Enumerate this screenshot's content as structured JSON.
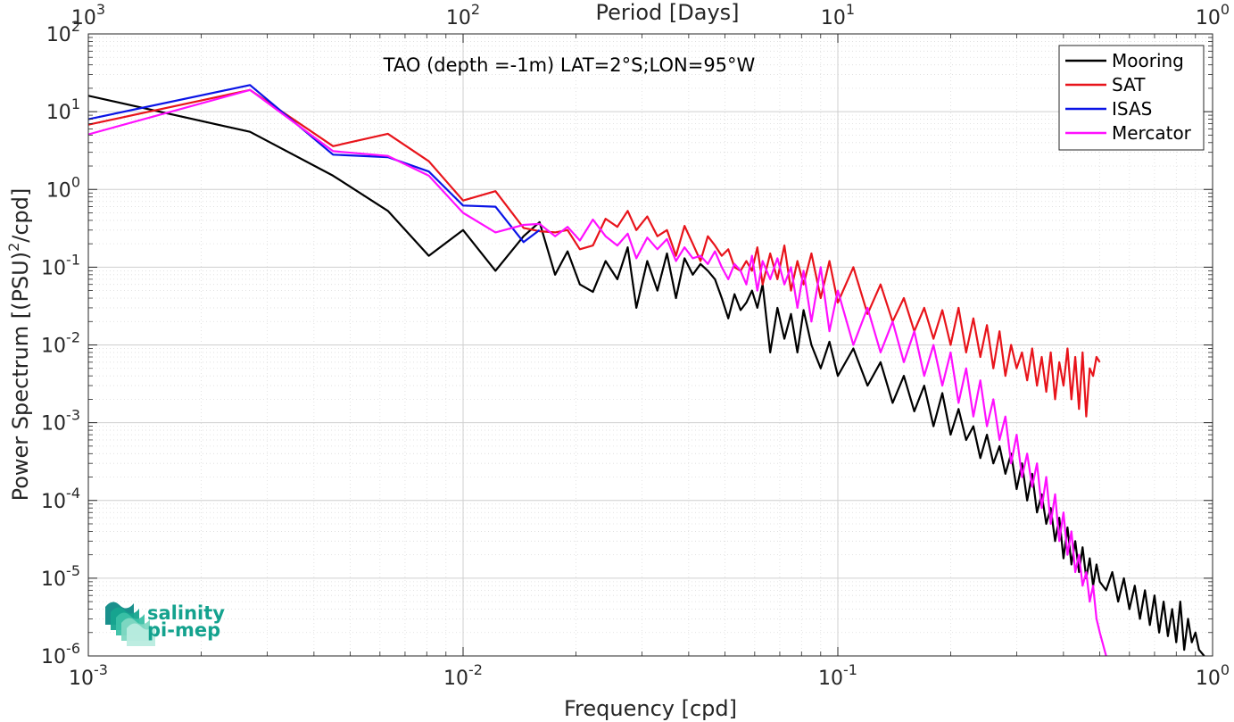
{
  "chart_data": {
    "type": "line",
    "title": "TAO (depth =-1m) LAT=2°S;LON=95°W",
    "xlabel": "Frequency [cpd]",
    "ylabel": "Power Spectrum [(PSU)²/cpd]",
    "ylabel_parts": {
      "main": "Power Spectrum [(PSU)",
      "sup": "2",
      "tail": "/cpd]"
    },
    "top_xlabel": "Period [Days]",
    "x_scale": "log",
    "y_scale": "log",
    "xlim": [
      0.001,
      1
    ],
    "ylim": [
      1e-06,
      100
    ],
    "grid": true,
    "minor_grid": true,
    "legend_position": "top-right",
    "x_ticks": [
      {
        "value": 0.001,
        "base": "10",
        "exp": "-3"
      },
      {
        "value": 0.01,
        "base": "10",
        "exp": "-2"
      },
      {
        "value": 0.1,
        "base": "10",
        "exp": "-1"
      },
      {
        "value": 1,
        "base": "10",
        "exp": "0"
      }
    ],
    "top_ticks": [
      {
        "value": 0.001,
        "base": "10",
        "exp": "3"
      },
      {
        "value": 0.01,
        "base": "10",
        "exp": "2"
      },
      {
        "value": 0.1,
        "base": "10",
        "exp": "1"
      },
      {
        "value": 1,
        "base": "10",
        "exp": "0"
      }
    ],
    "y_ticks": [
      {
        "value": 100,
        "base": "10",
        "exp": "2"
      },
      {
        "value": 10,
        "base": "10",
        "exp": "1"
      },
      {
        "value": 1,
        "base": "10",
        "exp": "0"
      },
      {
        "value": 0.1,
        "base": "10",
        "exp": "-1"
      },
      {
        "value": 0.01,
        "base": "10",
        "exp": "-2"
      },
      {
        "value": 0.001,
        "base": "10",
        "exp": "-3"
      },
      {
        "value": 0.0001,
        "base": "10",
        "exp": "-4"
      },
      {
        "value": 1e-05,
        "base": "10",
        "exp": "-5"
      },
      {
        "value": 1e-06,
        "base": "10",
        "exp": "-6"
      }
    ],
    "series": [
      {
        "name": "Mooring",
        "color": "#000000",
        "x": [
          0.001,
          0.0027,
          0.0045,
          0.0063,
          0.0081,
          0.01,
          0.0122,
          0.0145,
          0.016,
          0.0176,
          0.019,
          0.0205,
          0.0222,
          0.024,
          0.0258,
          0.0275,
          0.029,
          0.031,
          0.033,
          0.035,
          0.037,
          0.039,
          0.041,
          0.043,
          0.045,
          0.047,
          0.049,
          0.051,
          0.053,
          0.055,
          0.057,
          0.059,
          0.061,
          0.063,
          0.066,
          0.069,
          0.072,
          0.075,
          0.078,
          0.081,
          0.085,
          0.09,
          0.095,
          0.1,
          0.11,
          0.12,
          0.13,
          0.14,
          0.15,
          0.16,
          0.17,
          0.18,
          0.19,
          0.2,
          0.21,
          0.22,
          0.23,
          0.24,
          0.25,
          0.26,
          0.27,
          0.28,
          0.29,
          0.3,
          0.31,
          0.32,
          0.33,
          0.34,
          0.35,
          0.36,
          0.37,
          0.38,
          0.39,
          0.4,
          0.41,
          0.42,
          0.43,
          0.44,
          0.45,
          0.46,
          0.47,
          0.48,
          0.49,
          0.5,
          0.52,
          0.54,
          0.56,
          0.58,
          0.6,
          0.62,
          0.64,
          0.66,
          0.68,
          0.7,
          0.72,
          0.74,
          0.76,
          0.78,
          0.8,
          0.82,
          0.84,
          0.86,
          0.88,
          0.9,
          0.92,
          0.95
        ],
        "y": [
          16,
          5.5,
          1.5,
          0.53,
          0.14,
          0.3,
          0.09,
          0.25,
          0.38,
          0.08,
          0.16,
          0.06,
          0.048,
          0.12,
          0.07,
          0.18,
          0.03,
          0.12,
          0.05,
          0.15,
          0.04,
          0.13,
          0.08,
          0.11,
          0.09,
          0.07,
          0.04,
          0.022,
          0.045,
          0.028,
          0.035,
          0.05,
          0.03,
          0.06,
          0.008,
          0.03,
          0.012,
          0.025,
          0.008,
          0.028,
          0.01,
          0.005,
          0.011,
          0.004,
          0.009,
          0.003,
          0.006,
          0.0018,
          0.004,
          0.0014,
          0.003,
          0.0009,
          0.0024,
          0.0007,
          0.0015,
          0.0006,
          0.0009,
          0.00035,
          0.0007,
          0.0003,
          0.0005,
          0.00022,
          0.0004,
          0.00014,
          0.0003,
          0.0001,
          0.00022,
          7e-05,
          0.00012,
          5e-05,
          8e-05,
          3e-05,
          6e-05,
          1.8e-05,
          4.5e-05,
          1.5e-05,
          3e-05,
          1.2e-05,
          2.5e-05,
          1e-05,
          1.8e-05,
          8e-06,
          1.5e-05,
          9e-06,
          7e-06,
          1.2e-05,
          5e-06,
          1e-05,
          4e-06,
          8e-06,
          3e-06,
          7e-06,
          2.5e-06,
          6e-06,
          2e-06,
          5e-06,
          1.8e-06,
          4e-06,
          1.5e-06,
          5e-06,
          1.2e-06,
          3e-06,
          1.5e-06,
          2e-06,
          1.2e-06,
          1e-06
        ]
      },
      {
        "name": "SAT",
        "color": "#e8141b",
        "x": [
          0.001,
          0.0027,
          0.0045,
          0.0063,
          0.0081,
          0.01,
          0.0122,
          0.0145,
          0.016,
          0.0176,
          0.019,
          0.0205,
          0.0222,
          0.024,
          0.0258,
          0.0275,
          0.029,
          0.031,
          0.033,
          0.035,
          0.037,
          0.039,
          0.041,
          0.043,
          0.045,
          0.047,
          0.049,
          0.051,
          0.053,
          0.055,
          0.057,
          0.059,
          0.061,
          0.063,
          0.066,
          0.069,
          0.072,
          0.075,
          0.078,
          0.081,
          0.085,
          0.09,
          0.095,
          0.1,
          0.11,
          0.12,
          0.13,
          0.14,
          0.15,
          0.16,
          0.17,
          0.18,
          0.19,
          0.2,
          0.21,
          0.22,
          0.23,
          0.24,
          0.25,
          0.26,
          0.27,
          0.28,
          0.29,
          0.3,
          0.31,
          0.32,
          0.33,
          0.34,
          0.35,
          0.36,
          0.37,
          0.38,
          0.39,
          0.4,
          0.41,
          0.42,
          0.43,
          0.44,
          0.45,
          0.46,
          0.47,
          0.48,
          0.49,
          0.5
        ],
        "y": [
          6.8,
          19,
          3.6,
          5.2,
          2.3,
          0.72,
          0.95,
          0.32,
          0.29,
          0.28,
          0.3,
          0.17,
          0.19,
          0.42,
          0.33,
          0.53,
          0.3,
          0.45,
          0.25,
          0.3,
          0.14,
          0.34,
          0.2,
          0.12,
          0.25,
          0.19,
          0.14,
          0.17,
          0.1,
          0.09,
          0.12,
          0.09,
          0.18,
          0.06,
          0.15,
          0.07,
          0.19,
          0.05,
          0.12,
          0.06,
          0.15,
          0.04,
          0.12,
          0.035,
          0.1,
          0.025,
          0.06,
          0.02,
          0.04,
          0.015,
          0.03,
          0.012,
          0.028,
          0.01,
          0.03,
          0.008,
          0.022,
          0.007,
          0.018,
          0.005,
          0.015,
          0.004,
          0.01,
          0.005,
          0.008,
          0.0035,
          0.009,
          0.003,
          0.007,
          0.0025,
          0.008,
          0.002,
          0.006,
          0.003,
          0.009,
          0.002,
          0.007,
          0.0015,
          0.008,
          0.0012,
          0.005,
          0.004,
          0.007,
          0.006
        ]
      },
      {
        "name": "ISAS",
        "color": "#0a14e6",
        "x": [
          0.001,
          0.0027,
          0.0045,
          0.0063,
          0.0081,
          0.01,
          0.0122,
          0.0145,
          0.016
        ],
        "y": [
          8,
          22,
          2.8,
          2.6,
          1.7,
          0.62,
          0.6,
          0.21,
          0.3
        ]
      },
      {
        "name": "Mercator",
        "color": "#ff10ff",
        "x": [
          0.001,
          0.0027,
          0.0045,
          0.0063,
          0.0081,
          0.01,
          0.0122,
          0.0145,
          0.016,
          0.0176,
          0.019,
          0.0205,
          0.0222,
          0.024,
          0.0258,
          0.0275,
          0.029,
          0.031,
          0.033,
          0.035,
          0.037,
          0.039,
          0.041,
          0.043,
          0.045,
          0.047,
          0.049,
          0.051,
          0.053,
          0.055,
          0.057,
          0.059,
          0.061,
          0.063,
          0.066,
          0.069,
          0.072,
          0.075,
          0.078,
          0.081,
          0.085,
          0.09,
          0.095,
          0.1,
          0.11,
          0.12,
          0.13,
          0.14,
          0.15,
          0.16,
          0.17,
          0.18,
          0.19,
          0.2,
          0.21,
          0.22,
          0.23,
          0.24,
          0.25,
          0.26,
          0.27,
          0.28,
          0.29,
          0.3,
          0.31,
          0.32,
          0.33,
          0.34,
          0.35,
          0.36,
          0.37,
          0.38,
          0.39,
          0.4,
          0.41,
          0.42,
          0.43,
          0.44,
          0.45,
          0.46,
          0.47,
          0.48,
          0.49,
          0.5,
          0.52
        ],
        "y": [
          5.1,
          19,
          3.1,
          2.7,
          1.5,
          0.5,
          0.28,
          0.35,
          0.36,
          0.25,
          0.33,
          0.22,
          0.41,
          0.25,
          0.19,
          0.27,
          0.13,
          0.24,
          0.17,
          0.23,
          0.12,
          0.18,
          0.13,
          0.14,
          0.11,
          0.16,
          0.1,
          0.07,
          0.11,
          0.09,
          0.06,
          0.14,
          0.05,
          0.12,
          0.07,
          0.13,
          0.06,
          0.1,
          0.03,
          0.09,
          0.02,
          0.1,
          0.015,
          0.05,
          0.01,
          0.03,
          0.008,
          0.02,
          0.006,
          0.015,
          0.004,
          0.01,
          0.003,
          0.008,
          0.0018,
          0.005,
          0.0012,
          0.0035,
          0.0009,
          0.002,
          0.0006,
          0.0012,
          0.0003,
          0.0007,
          0.0002,
          0.0004,
          0.00015,
          0.0003,
          8e-05,
          0.0002,
          5e-05,
          0.00012,
          3e-05,
          7e-05,
          2e-05,
          4e-05,
          1.2e-05,
          2e-05,
          8e-06,
          1.2e-05,
          5e-06,
          8e-06,
          3e-06,
          2e-06,
          1e-06
        ]
      }
    ]
  },
  "logo": {
    "line1": "salinity",
    "line2": "pi-mep",
    "colors": [
      "#0e8a86",
      "#16a58f",
      "#3bc1a6",
      "#7fd8c2",
      "#b9ecdf"
    ]
  }
}
